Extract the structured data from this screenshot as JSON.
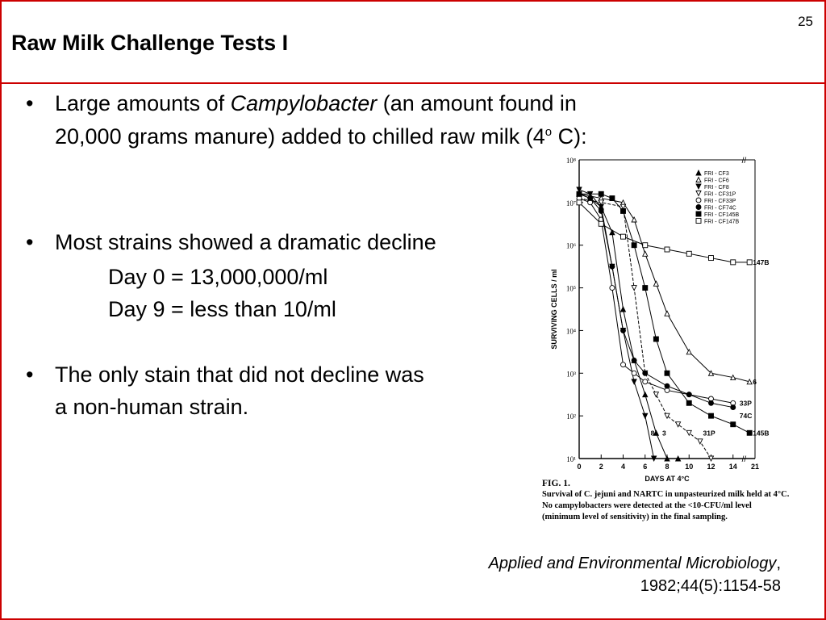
{
  "slide": {
    "title": "Raw Milk Challenge Tests I",
    "page_number": "25"
  },
  "bullets": {
    "b1_prefix": "Large amounts of ",
    "b1_italic": "Campylobacter",
    "b1_suffix": " (an amount found in",
    "b1_line2_pre": "20,000 grams manure) added to chilled raw milk (4",
    "b1_sup": "o",
    "b1_line2_post": " C):",
    "b2": "Most strains showed a dramatic decline",
    "b2_day0": "Day 0 = 13,000,000/ml",
    "b2_day9": "Day 9 = less than 10/ml",
    "b3_line1": "The only stain that did not decline was",
    "b3_line2": "a non-human strain.",
    "bullet_char": "•"
  },
  "figure": {
    "caption_num": "FIG. 1.",
    "caption_line1": "Survival of C. jejuni and NARTC in unpasteurized  milk  held at 4°C.",
    "caption_line2": "No  campylobacters were detected at the <10-CFU/ml level",
    "caption_line3": "(minimum level of sensitivity)  in the final sampling."
  },
  "citation": {
    "journal": "Applied and Environmental Microbiology",
    "details": "1982;44(5):1154-58"
  },
  "chart_data": {
    "type": "line",
    "xlabel": "DAYS AT 4°C",
    "ylabel": "SURVIVING CELLS / ml",
    "x_ticks": [
      "0",
      "2",
      "4",
      "6",
      "8",
      "10",
      "12",
      "14",
      "21"
    ],
    "y_ticks": [
      "10¹",
      "10²",
      "10³",
      "10⁴",
      "10⁵",
      "10⁶",
      "10⁷",
      "10⁸"
    ],
    "legend": [
      "FRI - CF3",
      "FRI - CF6",
      "FRI - CF8",
      "FRI - CF31P",
      "FRI - CF33P",
      "FRI - CF74C",
      "FRI - CF145B",
      "FRI - CF147B"
    ],
    "end_labels": [
      "147B",
      "6",
      "33P",
      "74C",
      "145B",
      "31P",
      "8",
      "3"
    ],
    "series": [
      {
        "name": "FRI - CF3",
        "marker": "triangle-filled",
        "label": "3",
        "points": [
          [
            0,
            7.2
          ],
          [
            1,
            7.1
          ],
          [
            2,
            6.9
          ],
          [
            3,
            6.3
          ],
          [
            4,
            4.5
          ],
          [
            5,
            3.3
          ],
          [
            6,
            2.5
          ],
          [
            7,
            1.6
          ],
          [
            8,
            1.0
          ],
          [
            9,
            1.0
          ]
        ]
      },
      {
        "name": "FRI - CF6",
        "marker": "triangle-open",
        "label": "6",
        "points": [
          [
            0,
            7.2
          ],
          [
            2,
            7.1
          ],
          [
            4,
            7.0
          ],
          [
            5,
            6.6
          ],
          [
            6,
            5.8
          ],
          [
            7,
            5.1
          ],
          [
            8,
            4.4
          ],
          [
            10,
            3.5
          ],
          [
            12,
            3.0
          ],
          [
            14,
            2.9
          ],
          [
            15.5,
            2.8
          ]
        ]
      },
      {
        "name": "FRI - CF8",
        "marker": "triangle-down-filled",
        "label": "8",
        "points": [
          [
            0,
            7.3
          ],
          [
            1,
            7.2
          ],
          [
            2,
            6.9
          ],
          [
            3,
            5.5
          ],
          [
            4,
            4.0
          ],
          [
            5,
            2.8
          ],
          [
            6,
            2.0
          ],
          [
            6.8,
            1.0
          ]
        ]
      },
      {
        "name": "FRI - CF31P",
        "marker": "triangle-down-open",
        "label": "31P",
        "points": [
          [
            0,
            7.1
          ],
          [
            2,
            7.0
          ],
          [
            4,
            6.9
          ],
          [
            5,
            5.0
          ],
          [
            6,
            3.0
          ],
          [
            7,
            2.5
          ],
          [
            8,
            2.0
          ],
          [
            9,
            1.8
          ],
          [
            10,
            1.6
          ],
          [
            11,
            1.4
          ],
          [
            12,
            1.0
          ]
        ]
      },
      {
        "name": "FRI - CF33P",
        "marker": "circle-open",
        "label": "33P",
        "points": [
          [
            0,
            7.1
          ],
          [
            1,
            7.0
          ],
          [
            2,
            6.6
          ],
          [
            3,
            5.0
          ],
          [
            4,
            3.2
          ],
          [
            5,
            3.0
          ],
          [
            6,
            2.8
          ],
          [
            8,
            2.6
          ],
          [
            10,
            2.5
          ],
          [
            12,
            2.4
          ],
          [
            14,
            2.3
          ]
        ]
      },
      {
        "name": "FRI - CF74C",
        "marker": "circle-filled",
        "label": "74C",
        "points": [
          [
            0,
            7.2
          ],
          [
            1,
            7.1
          ],
          [
            2,
            6.8
          ],
          [
            3,
            5.5
          ],
          [
            4,
            4.0
          ],
          [
            5,
            3.3
          ],
          [
            6,
            3.0
          ],
          [
            8,
            2.7
          ],
          [
            10,
            2.5
          ],
          [
            12,
            2.3
          ],
          [
            14,
            2.2
          ]
        ]
      },
      {
        "name": "FRI - CF145B",
        "marker": "square-filled",
        "label": "145B",
        "points": [
          [
            0,
            7.2
          ],
          [
            2,
            7.2
          ],
          [
            3,
            7.1
          ],
          [
            4,
            6.8
          ],
          [
            5,
            6.0
          ],
          [
            6,
            5.0
          ],
          [
            7,
            3.8
          ],
          [
            8,
            3.0
          ],
          [
            10,
            2.3
          ],
          [
            12,
            2.0
          ],
          [
            14,
            1.8
          ],
          [
            15.5,
            1.6
          ]
        ]
      },
      {
        "name": "FRI - CF147B",
        "marker": "square-open",
        "label": "147B",
        "points": [
          [
            0,
            7.0
          ],
          [
            2,
            6.5
          ],
          [
            4,
            6.2
          ],
          [
            6,
            6.0
          ],
          [
            8,
            5.9
          ],
          [
            10,
            5.8
          ],
          [
            12,
            5.7
          ],
          [
            14,
            5.6
          ],
          [
            15.5,
            5.6
          ]
        ]
      }
    ],
    "xlim": [
      0,
      16
    ],
    "ylim": [
      1,
      8
    ],
    "ylog": true
  }
}
